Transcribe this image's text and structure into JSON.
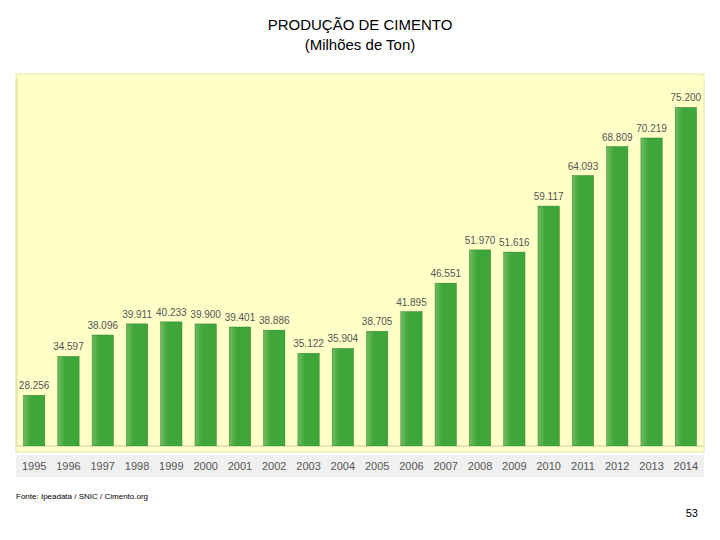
{
  "chart_data": {
    "type": "bar",
    "title": "PRODUÇÃO DE CIMENTO",
    "subtitle": "(Milhões de Ton)",
    "categories": [
      "1995",
      "1996",
      "1997",
      "1998",
      "1999",
      "2000",
      "2001",
      "2002",
      "2003",
      "2004",
      "2005",
      "2006",
      "2007",
      "2008",
      "2009",
      "2010",
      "2011",
      "2012",
      "2013",
      "2014"
    ],
    "values": [
      28.256,
      34.597,
      38.096,
      39.911,
      40.233,
      39.9,
      39.401,
      38.886,
      35.122,
      35.904,
      38.705,
      41.895,
      46.551,
      51.97,
      51.616,
      59.117,
      64.093,
      68.809,
      70.219,
      75.2
    ],
    "value_labels": [
      "28.256",
      "34.597",
      "38.096",
      "39.911",
      "40.233",
      "39.900",
      "39.401",
      "38.886",
      "35.122",
      "35.904",
      "38.705",
      "41.895",
      "46.551",
      "51.970",
      "51.616",
      "59.117",
      "64.093",
      "68.809",
      "70.219",
      "75.200"
    ],
    "color": "#3fa63a",
    "ylim": [
      20,
      80
    ],
    "data_labels": true,
    "tick_labels": "x",
    "source": "Fonte: Ipeadata / SNIC / Cimento.org",
    "page_number": 53
  }
}
